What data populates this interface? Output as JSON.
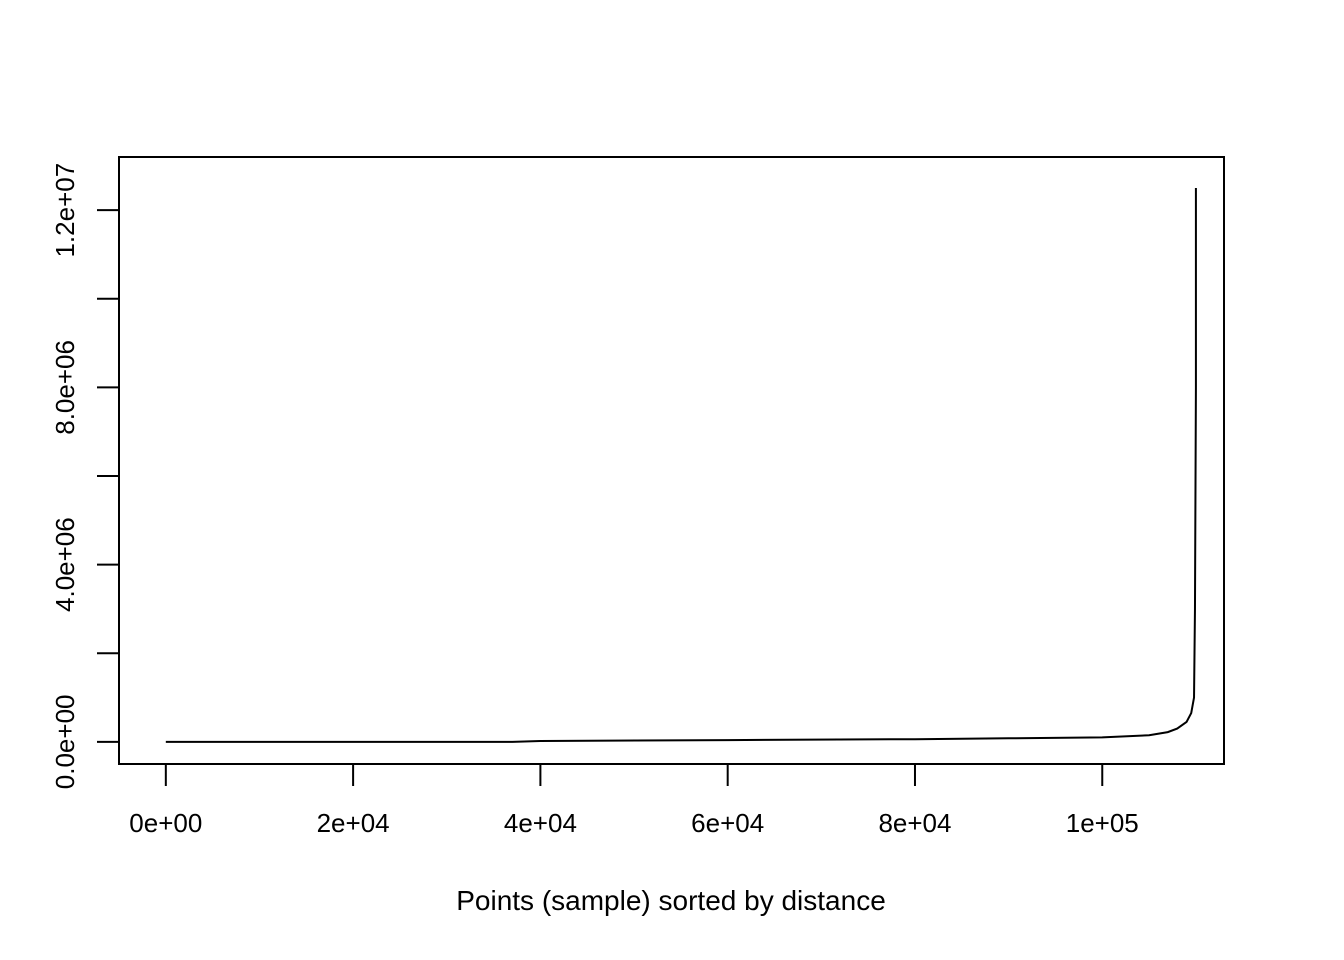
{
  "chart_data": {
    "type": "line",
    "title": "",
    "xlabel": "Points (sample) sorted by distance",
    "ylabel": "",
    "xlim": [
      -5000,
      113000
    ],
    "ylim": [
      -500000,
      13200000
    ],
    "x_ticks": [
      0,
      20000,
      40000,
      60000,
      80000,
      100000
    ],
    "x_tick_labels": [
      "0e+00",
      "2e+04",
      "4e+04",
      "6e+04",
      "8e+04",
      "1e+05"
    ],
    "y_ticks": [
      0,
      2000000,
      4000000,
      6000000,
      8000000,
      10000000,
      12000000
    ],
    "y_tick_labels": [
      "0.0e+00",
      "",
      "4.0e+06",
      "",
      "8.0e+06",
      "",
      "1.2e+07"
    ],
    "grid": false,
    "legend": "none",
    "line_color": "#000000",
    "series": [
      {
        "x": [
          0,
          20000,
          37000,
          40000,
          60000,
          80000,
          90000,
          100000,
          105000,
          107000,
          108000,
          109000,
          109500,
          109800,
          109900,
          110000,
          110000
        ],
        "y": [
          0,
          0,
          0,
          20000,
          40000,
          60000,
          80000,
          100000,
          150000,
          220000,
          300000,
          450000,
          650000,
          1000000,
          3000000,
          8000000,
          12500000
        ]
      }
    ]
  }
}
